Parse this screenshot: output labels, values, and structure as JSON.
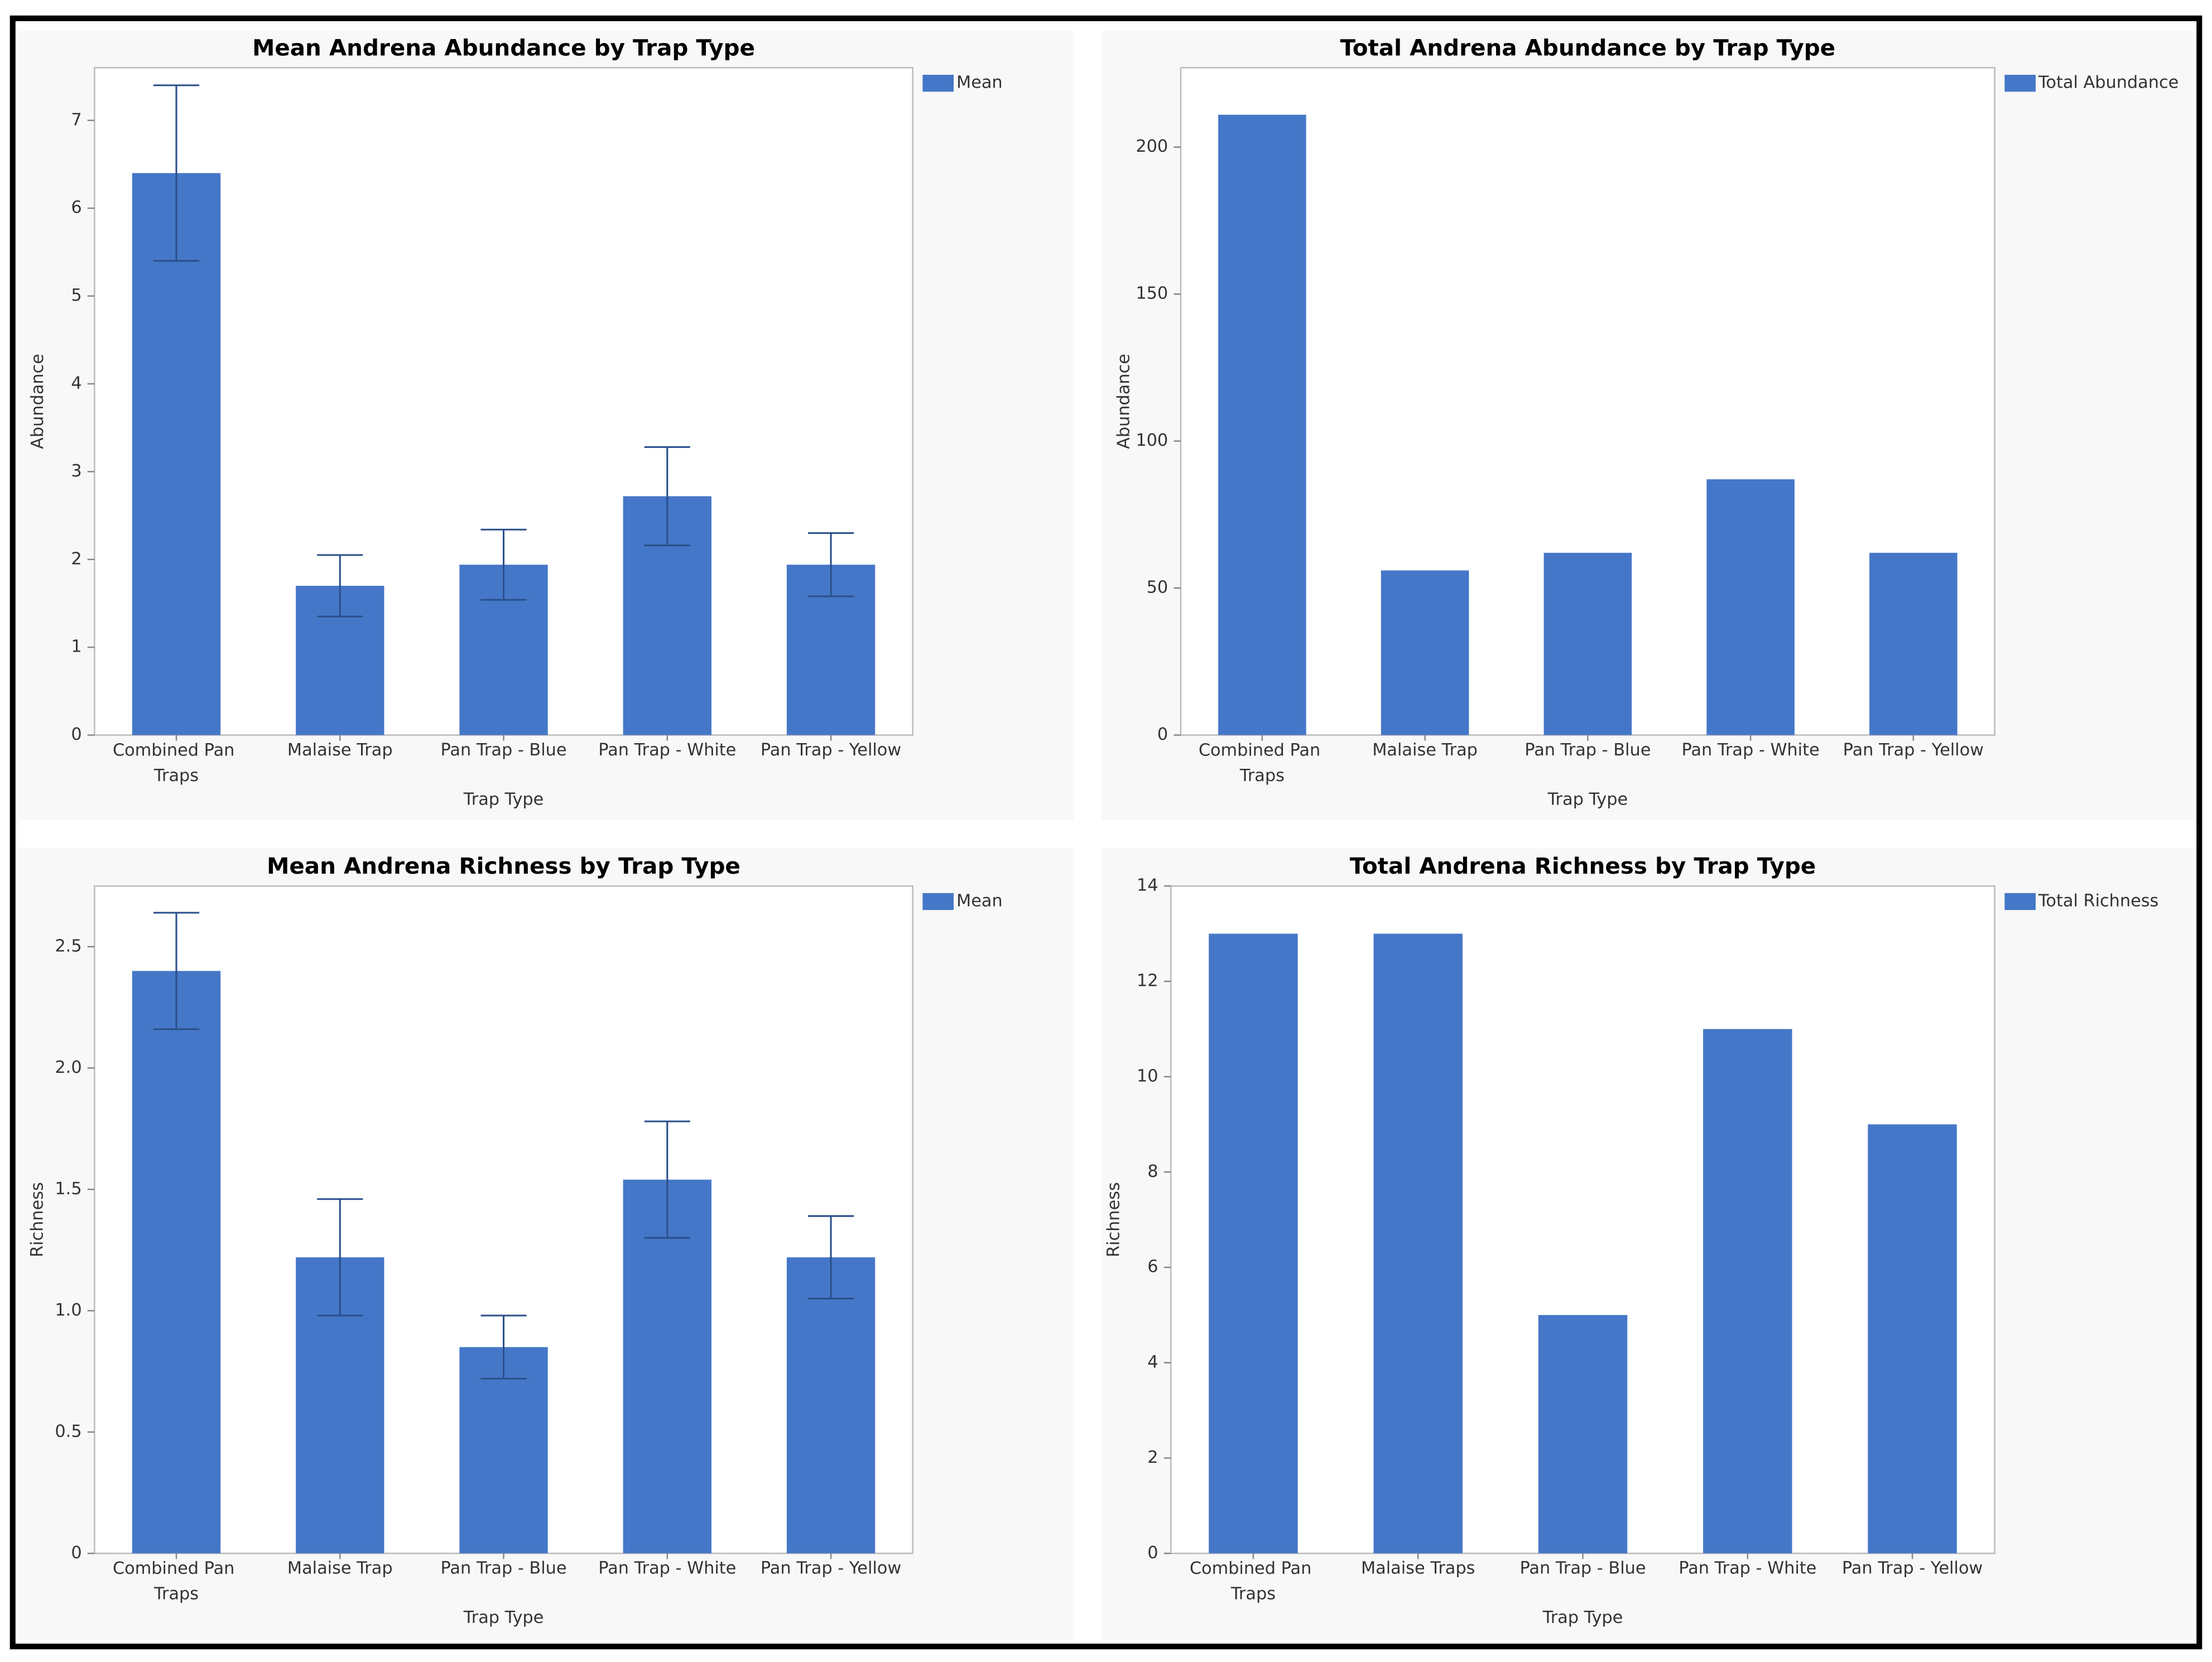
{
  "chart_data": [
    {
      "type": "bar",
      "title": "Mean Andrena Abundance by Trap Type",
      "xlabel": "Trap Type",
      "ylabel": "Abundance",
      "categories": [
        "Combined Pan Traps",
        "Malaise Trap",
        "Pan Trap - Blue",
        "Pan Trap - White",
        "Pan Trap - Yellow"
      ],
      "series": [
        {
          "name": "Mean",
          "color": "#4577c8",
          "values": [
            6.4,
            1.7,
            1.94,
            2.72,
            1.94
          ],
          "errors": [
            1.0,
            0.35,
            0.4,
            0.56,
            0.36
          ]
        }
      ],
      "ylim": [
        0,
        7.6
      ],
      "yticks": [
        0,
        1,
        2,
        3,
        4,
        5,
        6,
        7
      ]
    },
    {
      "type": "bar",
      "title": "Total Andrena Abundance by Trap Type",
      "xlabel": "Trap Type",
      "ylabel": "Abundance",
      "categories": [
        "Combined Pan Traps",
        "Malaise Trap",
        "Pan Trap - Blue",
        "Pan Trap - White",
        "Pan Trap - Yellow"
      ],
      "series": [
        {
          "name": "Total Abundance",
          "color": "#4577c8",
          "values": [
            211,
            56,
            62,
            87,
            62
          ]
        }
      ],
      "ylim": [
        0,
        227
      ],
      "yticks": [
        0,
        50,
        100,
        150,
        200
      ]
    },
    {
      "type": "bar",
      "title": "Mean Andrena Richness by Trap Type",
      "xlabel": "Trap Type",
      "ylabel": "Richness",
      "categories": [
        "Combined Pan Traps",
        "Malaise Trap",
        "Pan Trap - Blue",
        "Pan Trap - White",
        "Pan Trap - Yellow"
      ],
      "series": [
        {
          "name": "Mean",
          "color": "#4577c8",
          "values": [
            2.4,
            1.22,
            0.85,
            1.54,
            1.22
          ],
          "errors": [
            0.24,
            0.24,
            0.13,
            0.24,
            0.17
          ]
        }
      ],
      "ylim": [
        0,
        2.75
      ],
      "yticks": [
        0,
        0.5,
        {
          "value": 1,
          "label": "1.0"
        },
        1.5,
        {
          "value": 2,
          "label": "2.0"
        },
        2.5
      ]
    },
    {
      "type": "bar",
      "title": "Total Andrena Richness by Trap Type",
      "xlabel": "Trap Type",
      "ylabel": "Richness",
      "categories": [
        "Combined Pan Traps",
        "Malaise Traps",
        "Pan Trap - Blue",
        "Pan Trap - White",
        "Pan Trap - Yellow"
      ],
      "series": [
        {
          "name": "Total Richness",
          "color": "#4577c8",
          "values": [
            13,
            13,
            5,
            11,
            9
          ]
        }
      ],
      "ylim": [
        0,
        14
      ],
      "yticks": [
        0,
        2,
        4,
        6,
        8,
        10,
        12,
        14
      ]
    }
  ]
}
